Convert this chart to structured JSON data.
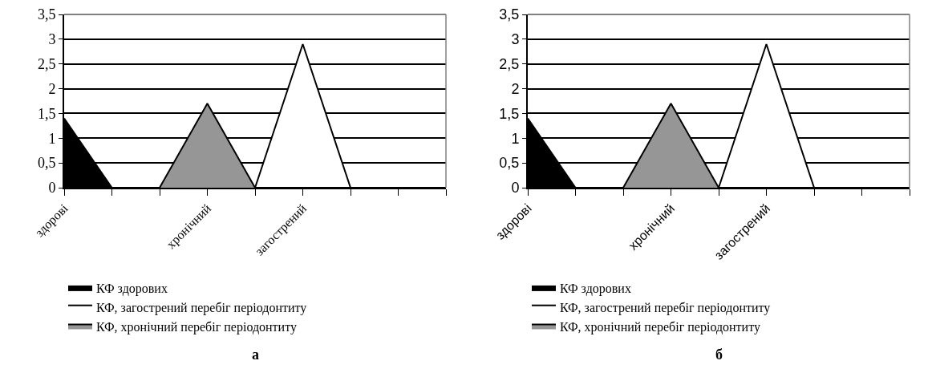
{
  "chart_data": [
    {
      "type": "area",
      "categories": [
        "здорові",
        null,
        null,
        "хронічний",
        null,
        "загострений",
        null,
        null,
        null
      ],
      "series": [
        {
          "name": "КФ здорових",
          "color": "#000000",
          "values": [
            1.4,
            0,
            0,
            0,
            0,
            0,
            0,
            0,
            0
          ]
        },
        {
          "name": "КФ, загострений перебіг періодонтиту",
          "color": "#ffffff",
          "values": [
            0,
            0,
            0,
            0,
            0,
            2.9,
            0,
            0,
            0
          ]
        },
        {
          "name": "КФ, хронічний перебіг періодонтиту",
          "color": "#969696",
          "values": [
            0,
            0,
            0,
            1.7,
            0,
            0,
            0,
            0,
            0
          ]
        }
      ],
      "ylim": [
        0,
        3.5
      ],
      "yticks": [
        0,
        {
          "value": 0.5,
          "label": "0,5"
        },
        1,
        {
          "value": 1.5,
          "label": "1,5"
        },
        2,
        {
          "value": 2.5,
          "label": "2,5"
        },
        3,
        {
          "value": 3.5,
          "label": "3,5"
        }
      ],
      "grid": "y",
      "legend": "bottom left",
      "annotations": [
        "а"
      ]
    },
    {
      "type": "area",
      "categories": [
        "здорові",
        null,
        null,
        "хронічний",
        null,
        "загострений",
        null,
        null,
        null
      ],
      "series": [
        {
          "name": "КФ здорових",
          "color": "#000000",
          "values": [
            1.4,
            0,
            0,
            0,
            0,
            0,
            0,
            0,
            0
          ]
        },
        {
          "name": "КФ, загострений перебіг періодонтиту",
          "color": "#ffffff",
          "values": [
            0,
            0,
            0,
            0,
            0,
            2.9,
            0,
            0,
            0
          ]
        },
        {
          "name": "КФ, хронічний перебіг періодонтиту",
          "color": "#969696",
          "values": [
            0,
            0,
            0,
            1.7,
            0,
            0,
            0,
            0,
            0
          ]
        }
      ],
      "ylim": [
        0,
        3.5
      ],
      "yticks": [
        0,
        {
          "value": 0.5,
          "label": "0,5"
        },
        1,
        {
          "value": 1.5,
          "label": "1,5"
        },
        2,
        {
          "value": 2.5,
          "label": "2,5"
        },
        3,
        {
          "value": 3.5,
          "label": "3,5"
        }
      ],
      "grid": "y",
      "legend": "bottom left",
      "annotations": [
        "б"
      ]
    }
  ]
}
